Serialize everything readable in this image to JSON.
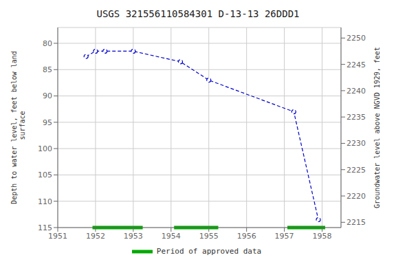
{
  "chart_data": {
    "type": "line",
    "title": "USGS 321556110584301 D-13-13 26DDD1",
    "y_label": "Depth to water level, feet below land\n surface",
    "y2_label": "Groundwater level above NGVD 1929, feet",
    "x": [
      1951.75,
      1952.0,
      1952.25,
      1953.0,
      1954.25,
      1955.0,
      1957.25,
      1957.9
    ],
    "values": [
      82.5,
      81.5,
      81.5,
      81.5,
      83.5,
      87.0,
      93.0,
      113.5
    ],
    "color": "#0000cc",
    "line_style": "dashed",
    "marker": "circle",
    "xlim": [
      1951,
      1958.5
    ],
    "xticks": [
      1951,
      1952,
      1953,
      1954,
      1955,
      1956,
      1957,
      1958
    ],
    "ylim": [
      115,
      77
    ],
    "yticks": [
      80,
      85,
      90,
      95,
      100,
      105,
      110,
      115
    ],
    "y2lim": [
      2214,
      2252
    ],
    "y2ticks": [
      2215,
      2220,
      2225,
      2230,
      2235,
      2240,
      2245,
      2250
    ],
    "approved_periods": {
      "name": "Period of approved data",
      "color": "#00aa00",
      "ranges": [
        [
          1951.92,
          1953.25
        ],
        [
          1954.08,
          1955.25
        ],
        [
          1957.08,
          1958.08
        ]
      ]
    },
    "grid": true,
    "legend": "bottom"
  }
}
